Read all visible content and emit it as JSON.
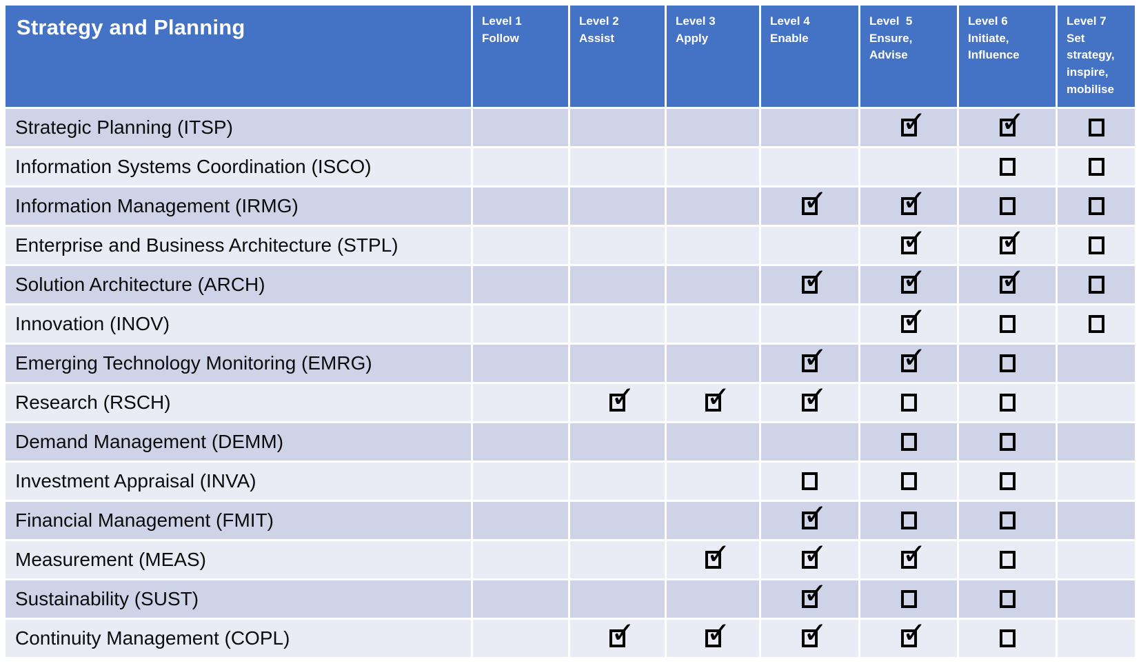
{
  "table": {
    "title": "Strategy and Planning",
    "columns": [
      {
        "level": "Level 1",
        "descriptor": "Follow"
      },
      {
        "level": "Level 2",
        "descriptor": "Assist"
      },
      {
        "level": "Level 3",
        "descriptor": "Apply"
      },
      {
        "level": "Level 4",
        "descriptor": "Enable"
      },
      {
        "level": "Level  5",
        "descriptor": "Ensure,\nAdvise"
      },
      {
        "level": "Level 6",
        "descriptor": "Initiate,\nInfluence"
      },
      {
        "level": "Level 7",
        "descriptor": "Set strategy, inspire, mobilise"
      }
    ],
    "rows": [
      {
        "skill": "Strategic Planning (ITSP)",
        "levels": [
          "none",
          "none",
          "none",
          "none",
          "checked",
          "checked",
          "unchecked"
        ]
      },
      {
        "skill": "Information Systems Coordination (ISCO)",
        "levels": [
          "none",
          "none",
          "none",
          "none",
          "none",
          "unchecked",
          "unchecked"
        ]
      },
      {
        "skill": "Information Management (IRMG)",
        "levels": [
          "none",
          "none",
          "none",
          "checked",
          "checked",
          "unchecked",
          "unchecked"
        ]
      },
      {
        "skill": "Enterprise and Business Architecture (STPL)",
        "levels": [
          "none",
          "none",
          "none",
          "none",
          "checked",
          "checked",
          "unchecked"
        ]
      },
      {
        "skill": "Solution Architecture (ARCH)",
        "levels": [
          "none",
          "none",
          "none",
          "checked",
          "checked",
          "checked",
          "unchecked"
        ]
      },
      {
        "skill": "Innovation (INOV)",
        "levels": [
          "none",
          "none",
          "none",
          "none",
          "checked",
          "unchecked",
          "unchecked"
        ]
      },
      {
        "skill": "Emerging Technology Monitoring (EMRG)",
        "levels": [
          "none",
          "none",
          "none",
          "checked",
          "checked",
          "unchecked",
          "none"
        ]
      },
      {
        "skill": "Research (RSCH)",
        "levels": [
          "none",
          "checked",
          "checked",
          "checked",
          "unchecked",
          "unchecked",
          "none"
        ]
      },
      {
        "skill": "Demand Management (DEMM)",
        "levels": [
          "none",
          "none",
          "none",
          "none",
          "unchecked",
          "unchecked",
          "none"
        ]
      },
      {
        "skill": "Investment Appraisal (INVA)",
        "levels": [
          "none",
          "none",
          "none",
          "unchecked",
          "unchecked",
          "unchecked",
          "none"
        ]
      },
      {
        "skill": "Financial Management (FMIT)",
        "levels": [
          "none",
          "none",
          "none",
          "checked",
          "unchecked",
          "unchecked",
          "none"
        ]
      },
      {
        "skill": "Measurement (MEAS)",
        "levels": [
          "none",
          "none",
          "checked",
          "checked",
          "checked",
          "unchecked",
          "none"
        ]
      },
      {
        "skill": "Sustainability (SUST)",
        "levels": [
          "none",
          "none",
          "none",
          "checked",
          "unchecked",
          "unchecked",
          "none"
        ]
      },
      {
        "skill": "Continuity Management (COPL)",
        "levels": [
          "none",
          "checked",
          "checked",
          "checked",
          "checked",
          "unchecked",
          "none"
        ]
      }
    ],
    "checkbox_states": {
      "checked": "checked-checkbox-icon",
      "unchecked": "empty-checkbox-icon"
    },
    "colors": {
      "header_bg": "#4472C4",
      "header_text": "#ffffff",
      "row_band_dark": "#CED3E8",
      "row_band_light": "#E9EBF5",
      "grid_line": "#ffffff",
      "checkbox": "#000000",
      "body_text": "#0c0c0c"
    }
  }
}
